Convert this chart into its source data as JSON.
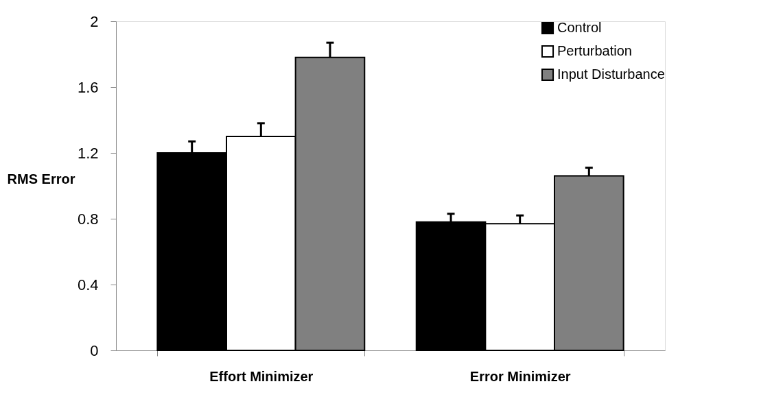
{
  "chart_data": {
    "type": "bar",
    "ylabel": "RMS Error",
    "categories": [
      "Effort Minimizer",
      "Error Minimizer"
    ],
    "series": [
      {
        "name": "Control",
        "color": "#000000",
        "values": [
          1.2,
          0.78
        ],
        "errors": [
          [
            1.2,
            1.27
          ],
          [
            0.78,
            0.83
          ]
        ]
      },
      {
        "name": "Perturbation",
        "color": "#ffffff",
        "values": [
          1.3,
          0.77
        ],
        "errors": [
          [
            1.3,
            1.38
          ],
          [
            0.77,
            0.82
          ]
        ]
      },
      {
        "name": "Input Disturbance",
        "color": "#808080",
        "values": [
          1.78,
          1.06
        ],
        "errors": [
          [
            1.78,
            1.87
          ],
          [
            1.06,
            1.11
          ]
        ]
      }
    ],
    "ylim": [
      0,
      2
    ],
    "yticks": [
      0,
      0.4,
      0.8,
      1.2,
      1.6,
      2
    ],
    "grid": false,
    "legend": "top right"
  }
}
